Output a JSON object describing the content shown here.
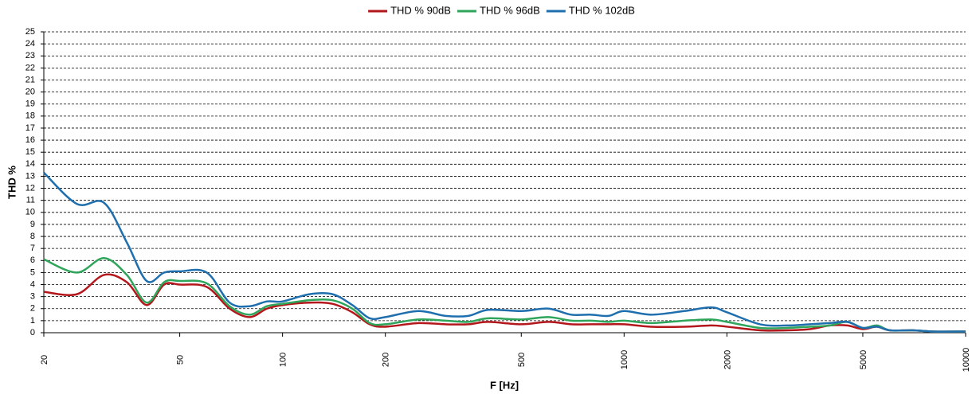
{
  "chart_data": {
    "type": "line",
    "xlabel": "F [Hz]",
    "ylabel": "THD %",
    "xscale": "log",
    "grid": true,
    "legend": "top",
    "x": [
      20,
      25,
      30,
      35,
      40,
      45,
      50,
      60,
      70,
      80,
      90,
      100,
      120,
      140,
      160,
      180,
      200,
      250,
      300,
      350,
      400,
      500,
      600,
      700,
      800,
      900,
      1000,
      1200,
      1500,
      1800,
      2000,
      2500,
      3000,
      3500,
      4000,
      4500,
      5000,
      5500,
      6000,
      7000,
      8000,
      10000
    ],
    "series": [
      {
        "name": "THD % 90dB",
        "color": "#b3161b",
        "values": [
          3.4,
          3.2,
          4.8,
          4.2,
          2.3,
          4.0,
          4.0,
          3.8,
          2.0,
          1.3,
          2.0,
          2.3,
          2.5,
          2.4,
          1.7,
          0.7,
          0.5,
          0.8,
          0.7,
          0.7,
          0.9,
          0.7,
          0.9,
          0.7,
          0.7,
          0.7,
          0.7,
          0.5,
          0.5,
          0.6,
          0.5,
          0.2,
          0.2,
          0.3,
          0.6,
          0.6,
          0.3,
          0.5,
          0.2,
          0.2,
          0.1,
          0.1
        ]
      },
      {
        "name": "THD % 96dB",
        "color": "#2ea55a",
        "values": [
          6.1,
          5.0,
          6.2,
          4.8,
          2.5,
          4.2,
          4.3,
          4.1,
          2.2,
          1.5,
          2.2,
          2.4,
          2.7,
          2.7,
          2.0,
          0.8,
          0.7,
          1.1,
          1.0,
          0.9,
          1.2,
          1.1,
          1.3,
          1.0,
          1.0,
          0.9,
          1.0,
          0.8,
          1.0,
          1.1,
          0.9,
          0.4,
          0.4,
          0.5,
          0.6,
          0.9,
          0.4,
          0.6,
          0.2,
          0.2,
          0.1,
          0.1
        ]
      },
      {
        "name": "THD % 102dB",
        "color": "#1f6fae",
        "values": [
          13.3,
          10.7,
          10.8,
          7.5,
          4.3,
          5.0,
          5.1,
          5.0,
          2.5,
          2.2,
          2.6,
          2.6,
          3.2,
          3.2,
          2.3,
          1.2,
          1.3,
          1.8,
          1.4,
          1.4,
          1.9,
          1.8,
          2.0,
          1.5,
          1.5,
          1.4,
          1.8,
          1.5,
          1.8,
          2.1,
          1.7,
          0.7,
          0.6,
          0.7,
          0.8,
          0.9,
          0.4,
          0.5,
          0.2,
          0.2,
          0.1,
          0.1
        ]
      }
    ],
    "xlim": [
      20,
      10000
    ],
    "xticks": [
      20,
      50,
      100,
      200,
      500,
      1000,
      2000,
      5000,
      10000
    ],
    "ylim": [
      0,
      25
    ],
    "yticks": [
      0,
      1,
      2,
      3,
      4,
      5,
      6,
      7,
      8,
      9,
      10,
      11,
      12,
      13,
      14,
      15,
      16,
      17,
      18,
      19,
      20,
      21,
      22,
      23,
      24,
      25
    ]
  }
}
